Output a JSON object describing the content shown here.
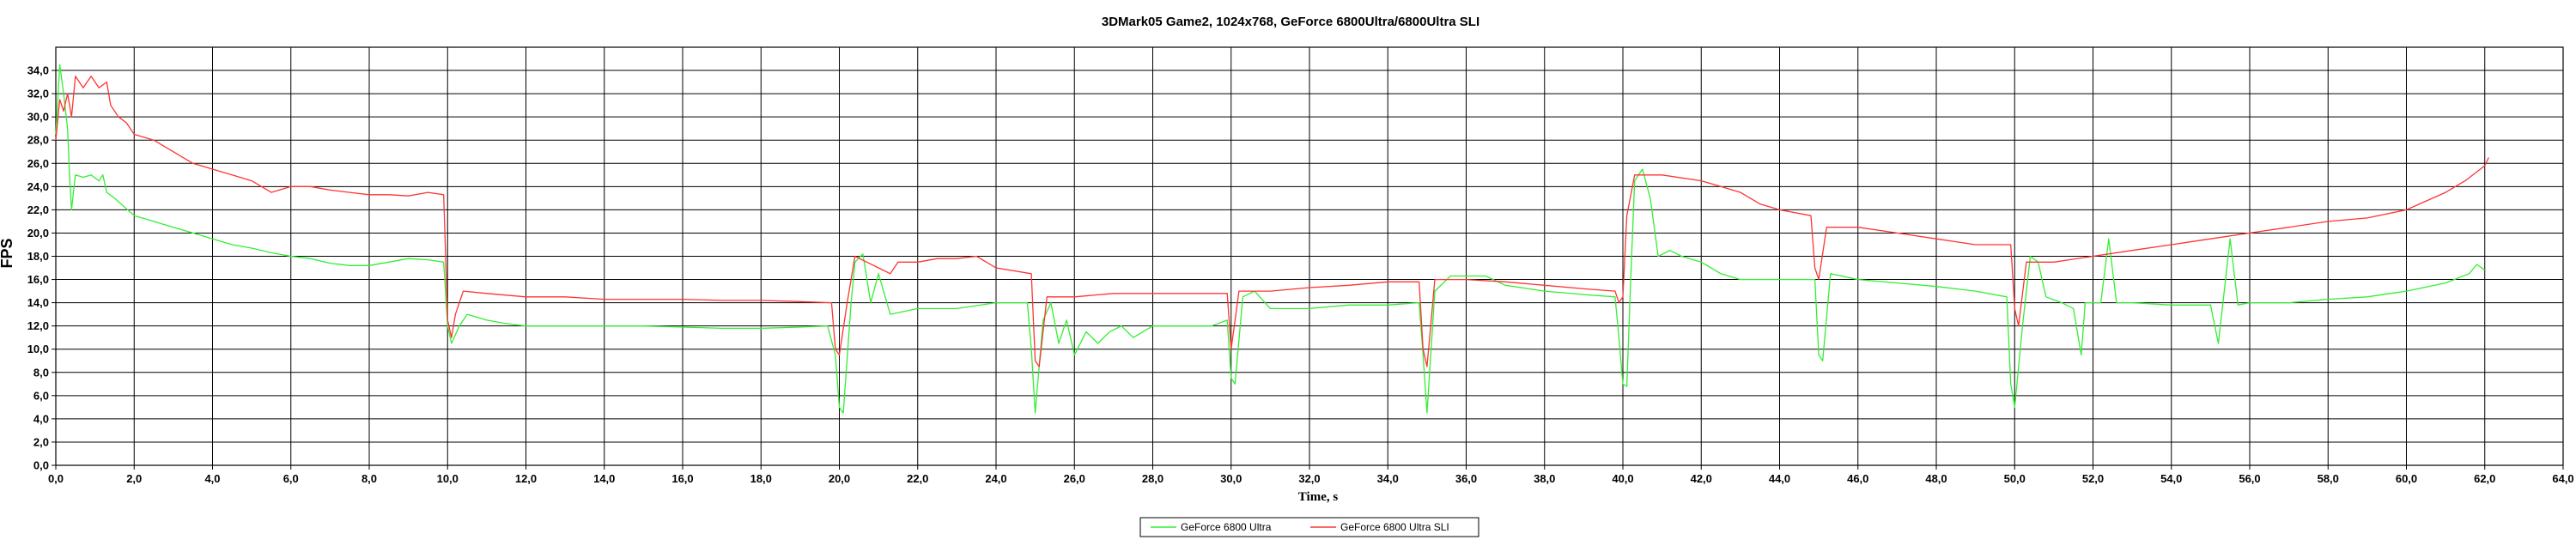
{
  "chart_data": {
    "type": "line",
    "title": "3DMark05 Game2, 1024x768, GeForce 6800Ultra/6800Ultra SLI",
    "xlabel": "Time, s",
    "ylabel": "FPS",
    "xlim": [
      0,
      64
    ],
    "ylim": [
      0,
      36
    ],
    "x_ticks": [
      "0,0",
      "2,0",
      "4,0",
      "6,0",
      "8,0",
      "10,0",
      "12,0",
      "14,0",
      "16,0",
      "18,0",
      "20,0",
      "22,0",
      "24,0",
      "26,0",
      "28,0",
      "30,0",
      "32,0",
      "34,0",
      "36,0",
      "38,0",
      "40,0",
      "42,0",
      "44,0",
      "46,0",
      "48,0",
      "50,0",
      "52,0",
      "54,0",
      "56,0",
      "58,0",
      "60,0",
      "62,0",
      "64,0"
    ],
    "y_ticks": [
      "0,0",
      "2,0",
      "4,0",
      "6,0",
      "8,0",
      "10,0",
      "12,0",
      "14,0",
      "16,0",
      "18,0",
      "20,0",
      "22,0",
      "24,0",
      "26,0",
      "28,0",
      "30,0",
      "32,0",
      "34,0"
    ],
    "grid": true,
    "legend_position": "bottom-center",
    "series": [
      {
        "name": "GeForce 6800 Ultra",
        "color": "#33ee33",
        "points": [
          [
            0,
            28.5
          ],
          [
            0.1,
            34.5
          ],
          [
            0.2,
            32.0
          ],
          [
            0.3,
            29.0
          ],
          [
            0.35,
            25.0
          ],
          [
            0.4,
            22.0
          ],
          [
            0.5,
            25.0
          ],
          [
            0.7,
            24.8
          ],
          [
            0.9,
            25.0
          ],
          [
            1.1,
            24.5
          ],
          [
            1.2,
            25.0
          ],
          [
            1.3,
            23.5
          ],
          [
            1.5,
            23.0
          ],
          [
            2.0,
            21.5
          ],
          [
            2.5,
            21.0
          ],
          [
            3.0,
            20.5
          ],
          [
            3.5,
            20.0
          ],
          [
            4.0,
            19.5
          ],
          [
            4.5,
            19.0
          ],
          [
            5.0,
            18.7
          ],
          [
            5.5,
            18.3
          ],
          [
            6.0,
            18.0
          ],
          [
            6.5,
            17.8
          ],
          [
            7.0,
            17.4
          ],
          [
            7.5,
            17.2
          ],
          [
            8.0,
            17.2
          ],
          [
            8.5,
            17.5
          ],
          [
            9.0,
            17.8
          ],
          [
            9.5,
            17.7
          ],
          [
            9.9,
            17.5
          ],
          [
            10.0,
            12.0
          ],
          [
            10.1,
            10.5
          ],
          [
            10.3,
            12.0
          ],
          [
            10.5,
            13.0
          ],
          [
            11.0,
            12.5
          ],
          [
            11.5,
            12.2
          ],
          [
            12.0,
            12.0
          ],
          [
            13.0,
            12.0
          ],
          [
            14.0,
            12.0
          ],
          [
            15.0,
            12.0
          ],
          [
            16.0,
            11.9
          ],
          [
            17.0,
            11.8
          ],
          [
            18.0,
            11.8
          ],
          [
            19.0,
            11.9
          ],
          [
            19.7,
            12.0
          ],
          [
            19.9,
            9.5
          ],
          [
            20.0,
            5.0
          ],
          [
            20.1,
            4.5
          ],
          [
            20.3,
            14.0
          ],
          [
            20.4,
            17.5
          ],
          [
            20.6,
            18.2
          ],
          [
            20.8,
            14.0
          ],
          [
            21.0,
            16.5
          ],
          [
            21.3,
            13.0
          ],
          [
            22.0,
            13.5
          ],
          [
            23.0,
            13.5
          ],
          [
            24.0,
            14.0
          ],
          [
            24.8,
            14.0
          ],
          [
            24.9,
            10.0
          ],
          [
            25.0,
            4.5
          ],
          [
            25.2,
            12.5
          ],
          [
            25.4,
            14.0
          ],
          [
            25.6,
            10.5
          ],
          [
            25.8,
            12.5
          ],
          [
            26.0,
            9.5
          ],
          [
            26.3,
            11.5
          ],
          [
            26.6,
            10.5
          ],
          [
            26.9,
            11.5
          ],
          [
            27.2,
            12.0
          ],
          [
            27.5,
            11.0
          ],
          [
            28.0,
            12.0
          ],
          [
            28.5,
            12.0
          ],
          [
            29.0,
            12.0
          ],
          [
            29.5,
            12.0
          ],
          [
            29.9,
            12.5
          ],
          [
            30.0,
            7.5
          ],
          [
            30.1,
            7.0
          ],
          [
            30.3,
            14.5
          ],
          [
            30.6,
            15.0
          ],
          [
            31.0,
            13.5
          ],
          [
            32.0,
            13.5
          ],
          [
            33.0,
            13.8
          ],
          [
            34.0,
            13.8
          ],
          [
            34.8,
            14.0
          ],
          [
            34.9,
            9.5
          ],
          [
            35.0,
            4.5
          ],
          [
            35.2,
            15.0
          ],
          [
            35.6,
            16.3
          ],
          [
            36.5,
            16.3
          ],
          [
            37.0,
            15.5
          ],
          [
            38.0,
            15.0
          ],
          [
            39.0,
            14.7
          ],
          [
            39.8,
            14.5
          ],
          [
            39.9,
            11.0
          ],
          [
            40.0,
            7.0
          ],
          [
            40.1,
            6.8
          ],
          [
            40.2,
            16.0
          ],
          [
            40.3,
            24.5
          ],
          [
            40.5,
            25.5
          ],
          [
            40.7,
            23.0
          ],
          [
            40.9,
            18.0
          ],
          [
            41.2,
            18.5
          ],
          [
            41.5,
            18.0
          ],
          [
            42.0,
            17.5
          ],
          [
            42.5,
            16.5
          ],
          [
            43.0,
            16.0
          ],
          [
            44.0,
            16.0
          ],
          [
            44.9,
            16.0
          ],
          [
            45.0,
            9.5
          ],
          [
            45.1,
            9.0
          ],
          [
            45.3,
            16.5
          ],
          [
            46.0,
            16.0
          ],
          [
            47.0,
            15.7
          ],
          [
            48.0,
            15.4
          ],
          [
            49.0,
            15.0
          ],
          [
            49.8,
            14.5
          ],
          [
            49.9,
            7.0
          ],
          [
            50.0,
            5.0
          ],
          [
            50.2,
            12.0
          ],
          [
            50.4,
            18.0
          ],
          [
            50.6,
            17.5
          ],
          [
            50.8,
            14.5
          ],
          [
            51.2,
            14.0
          ],
          [
            51.5,
            13.5
          ],
          [
            51.7,
            9.5
          ],
          [
            51.8,
            14.0
          ],
          [
            52.2,
            14.0
          ],
          [
            52.4,
            19.5
          ],
          [
            52.6,
            14.0
          ],
          [
            53.0,
            14.0
          ],
          [
            54.0,
            13.8
          ],
          [
            55.0,
            13.8
          ],
          [
            55.2,
            10.5
          ],
          [
            55.5,
            19.5
          ],
          [
            55.7,
            13.8
          ],
          [
            56.0,
            14.0
          ],
          [
            57.0,
            14.0
          ],
          [
            58.0,
            14.3
          ],
          [
            59.0,
            14.5
          ],
          [
            60.0,
            15.0
          ],
          [
            61.0,
            15.7
          ],
          [
            61.6,
            16.5
          ],
          [
            61.8,
            17.3
          ],
          [
            62.0,
            16.8
          ]
        ]
      },
      {
        "name": "GeForce 6800 Ultra SLI",
        "color": "#ff3333",
        "points": [
          [
            0,
            28.0
          ],
          [
            0.1,
            31.5
          ],
          [
            0.2,
            30.5
          ],
          [
            0.3,
            32.0
          ],
          [
            0.4,
            30.0
          ],
          [
            0.5,
            33.5
          ],
          [
            0.7,
            32.5
          ],
          [
            0.9,
            33.5
          ],
          [
            1.1,
            32.5
          ],
          [
            1.3,
            33.0
          ],
          [
            1.4,
            31.0
          ],
          [
            1.6,
            30.0
          ],
          [
            1.8,
            29.5
          ],
          [
            2.0,
            28.5
          ],
          [
            2.5,
            28.0
          ],
          [
            3.0,
            27.0
          ],
          [
            3.5,
            26.0
          ],
          [
            4.0,
            25.5
          ],
          [
            4.5,
            25.0
          ],
          [
            5.0,
            24.5
          ],
          [
            5.5,
            23.5
          ],
          [
            6.0,
            24.0
          ],
          [
            6.5,
            24.0
          ],
          [
            7.0,
            23.7
          ],
          [
            7.5,
            23.5
          ],
          [
            8.0,
            23.3
          ],
          [
            8.5,
            23.3
          ],
          [
            9.0,
            23.2
          ],
          [
            9.5,
            23.5
          ],
          [
            9.9,
            23.3
          ],
          [
            10.0,
            12.5
          ],
          [
            10.1,
            11.0
          ],
          [
            10.2,
            13.0
          ],
          [
            10.4,
            15.0
          ],
          [
            11.0,
            14.8
          ],
          [
            12.0,
            14.5
          ],
          [
            13.0,
            14.5
          ],
          [
            14.0,
            14.3
          ],
          [
            15.0,
            14.3
          ],
          [
            16.0,
            14.3
          ],
          [
            17.0,
            14.2
          ],
          [
            18.0,
            14.2
          ],
          [
            19.0,
            14.1
          ],
          [
            19.8,
            14.0
          ],
          [
            19.9,
            10.0
          ],
          [
            20.0,
            9.5
          ],
          [
            20.2,
            14.0
          ],
          [
            20.4,
            18.0
          ],
          [
            20.7,
            17.5
          ],
          [
            21.0,
            17.0
          ],
          [
            21.3,
            16.5
          ],
          [
            21.5,
            17.5
          ],
          [
            22.0,
            17.5
          ],
          [
            22.5,
            17.8
          ],
          [
            23.0,
            17.8
          ],
          [
            23.5,
            18.0
          ],
          [
            24.0,
            17.0
          ],
          [
            24.9,
            16.5
          ],
          [
            25.0,
            9.0
          ],
          [
            25.1,
            8.5
          ],
          [
            25.3,
            14.5
          ],
          [
            26.0,
            14.5
          ],
          [
            27.0,
            14.8
          ],
          [
            28.0,
            14.8
          ],
          [
            29.0,
            14.8
          ],
          [
            29.9,
            14.8
          ],
          [
            30.0,
            10.0
          ],
          [
            30.2,
            15.0
          ],
          [
            31.0,
            15.0
          ],
          [
            32.0,
            15.3
          ],
          [
            33.0,
            15.5
          ],
          [
            34.0,
            15.8
          ],
          [
            34.8,
            15.8
          ],
          [
            34.9,
            10.0
          ],
          [
            35.0,
            8.5
          ],
          [
            35.2,
            16.0
          ],
          [
            36.0,
            16.0
          ],
          [
            37.0,
            15.8
          ],
          [
            38.0,
            15.5
          ],
          [
            39.0,
            15.2
          ],
          [
            39.8,
            15.0
          ],
          [
            39.9,
            14.0
          ],
          [
            40.0,
            14.5
          ],
          [
            40.1,
            21.5
          ],
          [
            40.3,
            25.0
          ],
          [
            41.0,
            25.0
          ],
          [
            42.0,
            24.5
          ],
          [
            42.5,
            24.0
          ],
          [
            43.0,
            23.5
          ],
          [
            43.5,
            22.5
          ],
          [
            44.0,
            22.0
          ],
          [
            44.8,
            21.5
          ],
          [
            44.9,
            17.0
          ],
          [
            45.0,
            16.0
          ],
          [
            45.2,
            20.5
          ],
          [
            46.0,
            20.5
          ],
          [
            47.0,
            20.0
          ],
          [
            48.0,
            19.5
          ],
          [
            49.0,
            19.0
          ],
          [
            49.9,
            19.0
          ],
          [
            50.0,
            13.5
          ],
          [
            50.1,
            12.0
          ],
          [
            50.3,
            17.5
          ],
          [
            51.0,
            17.5
          ],
          [
            52.0,
            18.0
          ],
          [
            53.0,
            18.5
          ],
          [
            54.0,
            19.0
          ],
          [
            55.0,
            19.5
          ],
          [
            56.0,
            20.0
          ],
          [
            57.0,
            20.5
          ],
          [
            58.0,
            21.0
          ],
          [
            59.0,
            21.3
          ],
          [
            60.0,
            22.0
          ],
          [
            61.0,
            23.5
          ],
          [
            61.5,
            24.5
          ],
          [
            62.0,
            25.8
          ],
          [
            62.1,
            26.5
          ]
        ]
      }
    ]
  }
}
